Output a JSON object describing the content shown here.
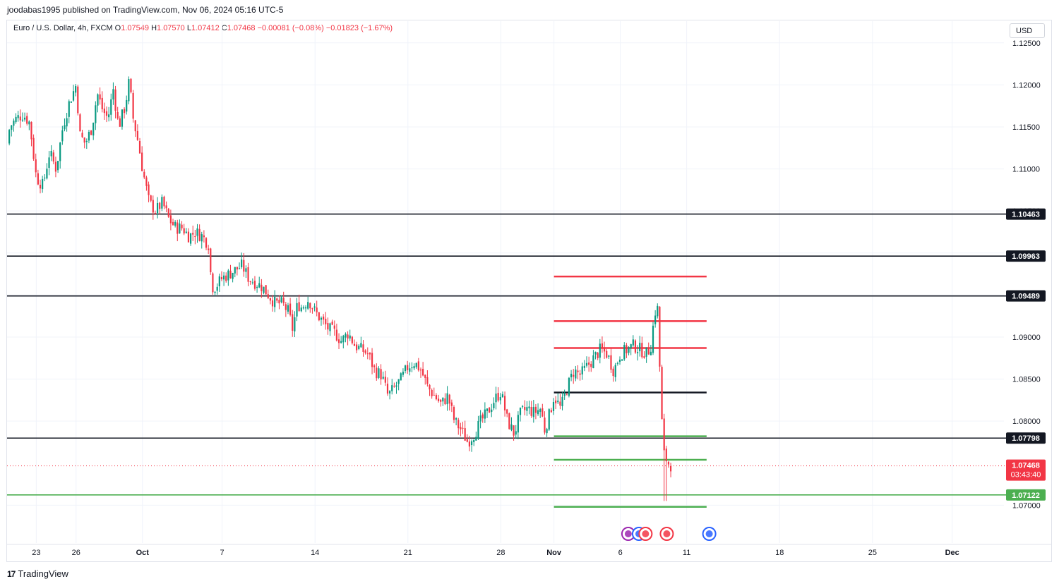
{
  "publisher": "joodabas1995 published on TradingView.com, Nov 06, 2024 05:16 UTC-5",
  "brand": {
    "logo_text": "17",
    "name": "TradingView"
  },
  "legend": {
    "symbol": "Euro / U.S. Dollar, 4h, FXCM",
    "open_label": "O",
    "open": "1.07549",
    "high_label": "H",
    "high": "1.07570",
    "low_label": "L",
    "low": "1.07412",
    "close_label": "C",
    "close": "1.07468",
    "change": "−0.00081 (−0.08%)",
    "change2": "−0.01823 (−1.67%)"
  },
  "currency_button": "USD",
  "chart_data": {
    "type": "candlestick",
    "timeframe": "4h",
    "y_axis": {
      "ticks": [
        "1.12500",
        "1.12000",
        "1.11500",
        "1.11000",
        "1.10500",
        "1.10000",
        "1.09500",
        "1.09000",
        "1.08500",
        "1.08000",
        "1.07000"
      ],
      "range": [
        1.0655,
        1.1254
      ]
    },
    "x_axis": {
      "ticks": [
        {
          "label": "23",
          "day": 0
        },
        {
          "label": "26",
          "day": 3
        },
        {
          "label": "Oct",
          "day": 8
        },
        {
          "label": "7",
          "day": 14
        },
        {
          "label": "14",
          "day": 21
        },
        {
          "label": "21",
          "day": 28
        },
        {
          "label": "28",
          "day": 35
        },
        {
          "label": "Nov",
          "day": 39
        },
        {
          "label": "6",
          "day": 44
        },
        {
          "label": "11",
          "day": 49
        },
        {
          "label": "18",
          "day": 56
        },
        {
          "label": "25",
          "day": 63
        },
        {
          "label": "Dec",
          "day": 69
        }
      ],
      "range_days": [
        -2.2,
        72.9
      ]
    },
    "close_path": [
      [
        -2.2,
        1.113
      ],
      [
        -2.0,
        1.115
      ],
      [
        -1.5,
        1.116
      ],
      [
        -1.0,
        1.1165
      ],
      [
        -0.5,
        1.1155
      ],
      [
        0.0,
        1.109
      ],
      [
        0.5,
        1.108
      ],
      [
        1.0,
        1.112
      ],
      [
        1.5,
        1.11
      ],
      [
        2.0,
        1.115
      ],
      [
        2.5,
        1.118
      ],
      [
        3.0,
        1.12
      ],
      [
        3.3,
        1.114
      ],
      [
        3.7,
        1.113
      ],
      [
        4.2,
        1.115
      ],
      [
        4.6,
        1.119
      ],
      [
        5.0,
        1.117
      ],
      [
        5.4,
        1.116
      ],
      [
        5.8,
        1.1195
      ],
      [
        6.2,
        1.115
      ],
      [
        6.7,
        1.1175
      ],
      [
        7.0,
        1.1205
      ],
      [
        7.3,
        1.116
      ],
      [
        7.7,
        1.113
      ],
      [
        8.0,
        1.11
      ],
      [
        8.5,
        1.106
      ],
      [
        9.0,
        1.105
      ],
      [
        9.5,
        1.106
      ],
      [
        10.0,
        1.104
      ],
      [
        10.5,
        1.103
      ],
      [
        11.0,
        1.103
      ],
      [
        11.5,
        1.102
      ],
      [
        12.0,
        1.1025
      ],
      [
        12.5,
        1.102
      ],
      [
        13.0,
        1.101
      ],
      [
        13.2,
        1.096
      ],
      [
        13.5,
        1.096
      ],
      [
        14.0,
        1.097
      ],
      [
        14.5,
        1.0975
      ],
      [
        15.0,
        1.098
      ],
      [
        15.5,
        1.0985
      ],
      [
        16.0,
        1.097
      ],
      [
        16.5,
        1.0965
      ],
      [
        17.0,
        1.096
      ],
      [
        17.5,
        1.095
      ],
      [
        18.0,
        1.094
      ],
      [
        18.5,
        1.094
      ],
      [
        19.0,
        1.093
      ],
      [
        19.3,
        1.091
      ],
      [
        19.7,
        1.094
      ],
      [
        20.0,
        1.0935
      ],
      [
        20.5,
        1.0945
      ],
      [
        21.0,
        1.093
      ],
      [
        21.5,
        1.092
      ],
      [
        22.0,
        1.091
      ],
      [
        22.5,
        1.0905
      ],
      [
        23.0,
        1.0895
      ],
      [
        23.5,
        1.0905
      ],
      [
        24.0,
        1.089
      ],
      [
        24.5,
        1.0885
      ],
      [
        25.0,
        1.088
      ],
      [
        25.5,
        1.086
      ],
      [
        26.0,
        1.0855
      ],
      [
        26.5,
        1.083
      ],
      [
        27.0,
        1.084
      ],
      [
        27.5,
        1.085
      ],
      [
        28.0,
        1.0865
      ],
      [
        28.5,
        1.087
      ],
      [
        29.0,
        1.086
      ],
      [
        29.5,
        1.084
      ],
      [
        30.0,
        1.083
      ],
      [
        30.5,
        1.082
      ],
      [
        31.0,
        1.083
      ],
      [
        31.5,
        1.08
      ],
      [
        32.0,
        1.079
      ],
      [
        32.5,
        1.0775
      ],
      [
        33.0,
        1.0785
      ],
      [
        33.5,
        1.08
      ],
      [
        34.0,
        1.081
      ],
      [
        34.5,
        1.0825
      ],
      [
        35.0,
        1.0835
      ],
      [
        35.5,
        1.08
      ],
      [
        36.0,
        1.0785
      ],
      [
        36.5,
        1.081
      ],
      [
        37.0,
        1.0815
      ],
      [
        37.5,
        1.081
      ],
      [
        38.0,
        1.0815
      ],
      [
        38.3,
        1.079
      ],
      [
        38.7,
        1.081
      ],
      [
        39.0,
        1.083
      ],
      [
        39.5,
        1.0815
      ],
      [
        40.0,
        1.084
      ],
      [
        40.5,
        1.086
      ],
      [
        41.0,
        1.0855
      ],
      [
        41.5,
        1.0865
      ],
      [
        42.0,
        1.0875
      ],
      [
        42.5,
        1.0885
      ],
      [
        43.0,
        1.088
      ],
      [
        43.5,
        1.086
      ],
      [
        44.0,
        1.088
      ],
      [
        44.5,
        1.0885
      ],
      [
        45.0,
        1.089
      ],
      [
        45.5,
        1.0885
      ],
      [
        46.0,
        1.088
      ],
      [
        46.3,
        1.089
      ],
      [
        46.6,
        1.093
      ],
      [
        46.9,
        1.0935
      ],
      [
        47.0,
        1.083
      ],
      [
        47.3,
        1.076
      ],
      [
        47.6,
        1.075
      ],
      [
        47.9,
        1.0747
      ]
    ],
    "horizontal_levels": [
      {
        "price": 1.10463,
        "label": "1.10463",
        "color": "#131722",
        "style": "full"
      },
      {
        "price": 1.09963,
        "label": "1.09963",
        "color": "#131722",
        "style": "full"
      },
      {
        "price": 1.09489,
        "label": "1.09489",
        "color": "#131722",
        "style": "full"
      },
      {
        "price": 1.07798,
        "label": "1.07798",
        "color": "#131722",
        "style": "full"
      },
      {
        "price": 1.07122,
        "label": "1.07122",
        "color": "#4caf50",
        "style": "full"
      }
    ],
    "target_lines": [
      {
        "price": 1.0972,
        "color": "#f23645"
      },
      {
        "price": 1.0919,
        "color": "#f23645"
      },
      {
        "price": 1.0887,
        "color": "#f23645"
      },
      {
        "price": 1.0834,
        "color": "#131722"
      },
      {
        "price": 1.0782,
        "color": "#4caf50"
      },
      {
        "price": 1.0754,
        "color": "#4caf50"
      },
      {
        "price": 1.0698,
        "color": "#4caf50"
      }
    ],
    "target_lines_days": [
      39.0,
      50.5
    ],
    "last_price": {
      "price": 1.07468,
      "label": "1.07468",
      "countdown": "03:43:40",
      "color": "#f23645"
    },
    "colors": {
      "up": "#089981",
      "down": "#f23645",
      "grid": "#f0f3fa"
    },
    "event_icons": [
      {
        "day": 44.6,
        "name": "lightning-event-icon",
        "color": "#9c27b0"
      },
      {
        "day": 45.4,
        "name": "earnings-event-icon",
        "color": "#2962ff"
      },
      {
        "day": 45.9,
        "name": "us-flag-event-icon",
        "color": "#f23645"
      },
      {
        "day": 47.5,
        "name": "us-flag-event-icon",
        "color": "#f23645"
      },
      {
        "day": 50.7,
        "name": "economic-event-icon",
        "color": "#2962ff"
      }
    ]
  }
}
